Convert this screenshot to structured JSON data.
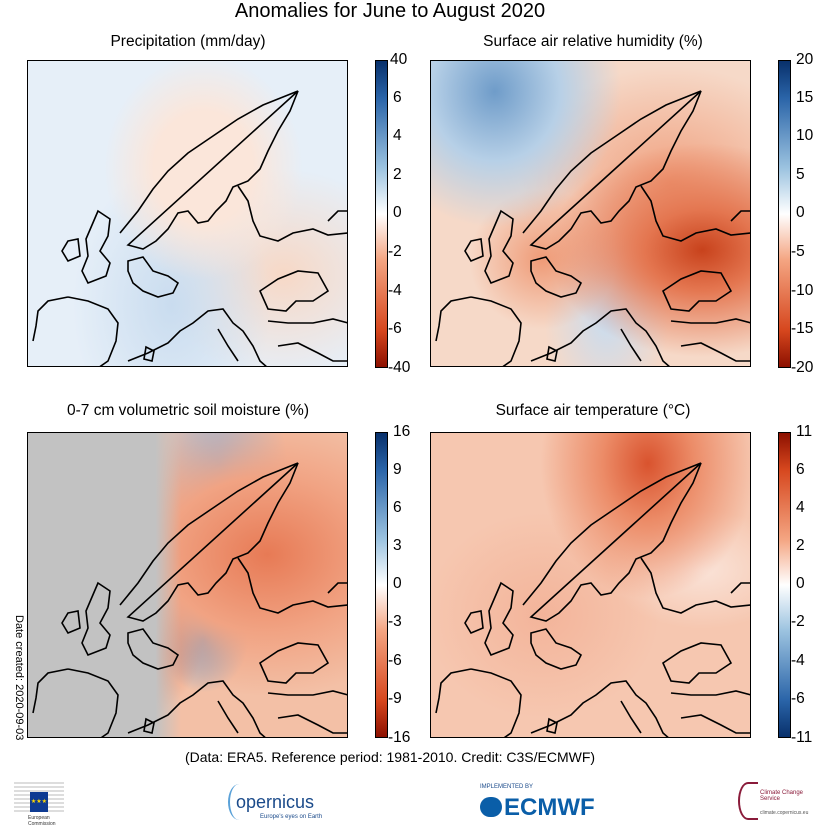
{
  "figure_title": "Anomalies for June to August 2020",
  "panels": [
    {
      "title": "Precipitation (mm/day)",
      "ticks": [
        "40",
        "6",
        "4",
        "2",
        "0",
        "-2",
        "-4",
        "-6",
        "-40"
      ],
      "colors": [
        "#0b3e7a",
        "#ffffff",
        "#a31a00"
      ]
    },
    {
      "title": "Surface air relative humidity (%)",
      "ticks": [
        "20",
        "15",
        "10",
        "5",
        "0",
        "-5",
        "-10",
        "-15",
        "-20"
      ],
      "colors": [
        "#0b3e7a",
        "#ffffff",
        "#a31a00"
      ]
    },
    {
      "title": "0-7 cm volumetric soil moisture (%)",
      "ticks": [
        "16",
        "9",
        "6",
        "3",
        "0",
        "-3",
        "-6",
        "-9",
        "-16"
      ],
      "colors": [
        "#0b3e7a",
        "#ffffff",
        "#a31a00"
      ]
    },
    {
      "title": "Surface air temperature (°C)",
      "ticks": [
        "11",
        "6",
        "4",
        "2",
        "0",
        "-2",
        "-4",
        "-6",
        "-11"
      ],
      "colors": [
        "#a31a00",
        "#ffffff",
        "#0b3e7a"
      ]
    }
  ],
  "credits": "(Data: ERA5.  Reference period: 1981-2010.  Credit: C3S/ECMWF)",
  "date_created": "Date created: 2020-09-03",
  "logos": {
    "eu": "European Commission",
    "copernicus": "opernicus",
    "copernicus_sub": "Europe's eyes on Earth",
    "ecmwf_top": "IMPLEMENTED BY",
    "ecmwf": "ECMWF",
    "c3s": "Climate Change Service",
    "c3s_url": "climate.copernicus.eu"
  }
}
